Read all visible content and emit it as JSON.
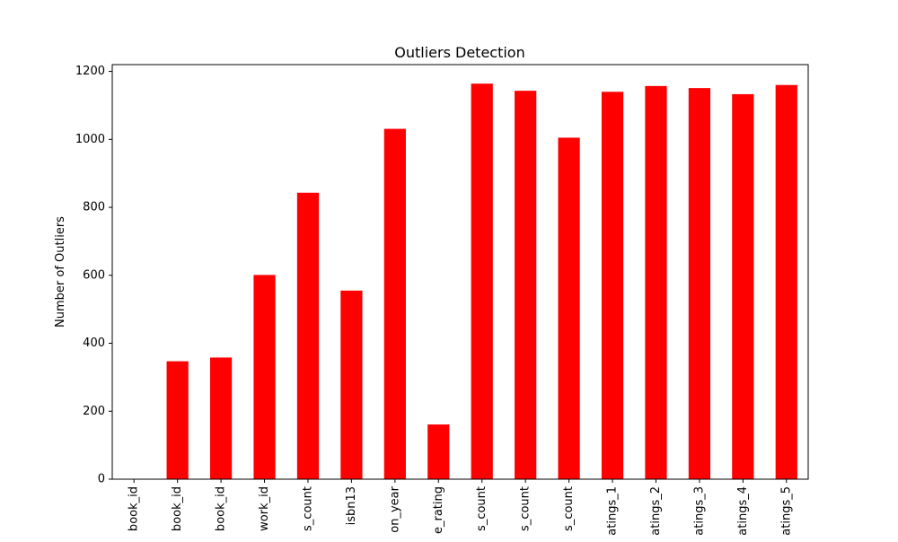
{
  "chart_data": {
    "type": "bar",
    "title": "Outliers Detection",
    "xlabel": "",
    "ylabel": "Number of Outliers",
    "categories": [
      "book_id",
      "book_id",
      "book_id",
      "work_id",
      "s_count",
      "isbn13",
      "on_year",
      "e_rating",
      "s_count",
      "s_count",
      "s_count",
      "atings_1",
      "atings_2",
      "atings_3",
      "atings_4",
      "atings_5"
    ],
    "values": [
      0,
      347,
      358,
      601,
      843,
      555,
      1031,
      161,
      1164,
      1143,
      1005,
      1140,
      1157,
      1151,
      1133,
      1160
    ],
    "ylim": [
      0,
      1220
    ],
    "yticks": [
      0,
      200,
      400,
      600,
      800,
      1000,
      1200
    ],
    "bar_color": "#ff0000",
    "grid": false,
    "legend": "none"
  }
}
